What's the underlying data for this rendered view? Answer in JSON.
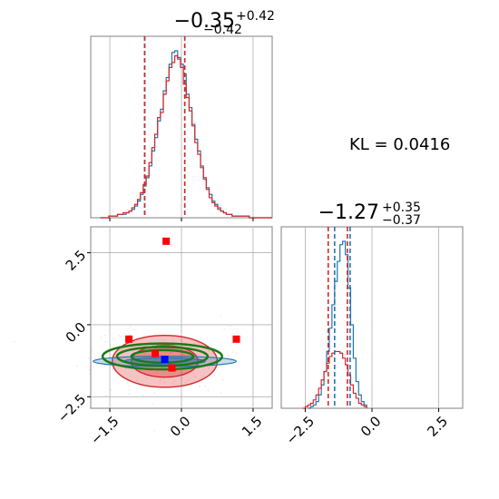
{
  "colors": {
    "blue": "#1f77b4",
    "red": "#d62728",
    "green": "#1a7a1a",
    "grid": "#b0b0b0",
    "frame": "#808080"
  },
  "chart_data": [
    {
      "type": "histogram",
      "panel": "top-left",
      "parameter_index": 0,
      "title_main": "−0.35",
      "title_plus": "+0.42",
      "title_minus": "−0.42",
      "xlim": [
        -1.9,
        1.9
      ],
      "x_ticks": [
        -1.5,
        0.0,
        1.5
      ],
      "y_ticks": [],
      "grid": true,
      "series": [
        {
          "color": "#1f77b4",
          "quantiles": [
            -0.77,
            0.07
          ],
          "bins": [
            -1.7,
            1.9
          ],
          "values": [
            0,
            0,
            0,
            1,
            1,
            1,
            2,
            2,
            2,
            3,
            4,
            5,
            7,
            10,
            14,
            19,
            24,
            31,
            40,
            48,
            58,
            65,
            76,
            84,
            92,
            99,
            100,
            96,
            92,
            86,
            74,
            66,
            56,
            47,
            40,
            31,
            23,
            18,
            14,
            10,
            8,
            6,
            4,
            3,
            2,
            2,
            1,
            1,
            1,
            1,
            1,
            1,
            0,
            0,
            0,
            0,
            0,
            0,
            0,
            0
          ]
        },
        {
          "color": "#d62728",
          "quantiles": [
            -0.77,
            0.07
          ],
          "bins": [
            -1.7,
            1.9
          ],
          "values": [
            0,
            0,
            0,
            1,
            1,
            1,
            2,
            2,
            3,
            3,
            4,
            6,
            8,
            11,
            15,
            20,
            25,
            33,
            42,
            50,
            60,
            63,
            74,
            82,
            90,
            93,
            97,
            95,
            90,
            80,
            72,
            64,
            55,
            45,
            38,
            30,
            24,
            17,
            12,
            9,
            7,
            5,
            4,
            3,
            2,
            2,
            1,
            1,
            1,
            1,
            1,
            1,
            0,
            0,
            0,
            0,
            0,
            0,
            0,
            0
          ]
        }
      ]
    },
    {
      "type": "contour",
      "panel": "bottom-left",
      "x_param": 0,
      "y_param": 1,
      "xlim": [
        -1.9,
        1.9
      ],
      "ylim": [
        -2.9,
        3.4
      ],
      "x_ticks": [
        -1.5,
        0.0,
        1.5
      ],
      "y_ticks": [
        -2.5,
        0.0,
        2.5
      ],
      "grid": true,
      "crosshair": {
        "x": 0.0,
        "y": 0.0
      },
      "red_contours": [
        {
          "cx": -0.35,
          "cy": -1.27,
          "rx": 1.1,
          "ry": 0.9
        },
        {
          "cx": -0.35,
          "cy": -1.27,
          "rx": 0.7,
          "ry": 0.55
        }
      ],
      "blue_contours": [
        {
          "cx": -0.35,
          "cy": -1.27,
          "rx": 1.5,
          "ry": 0.18
        },
        {
          "cx": -0.35,
          "cy": -1.27,
          "rx": 0.85,
          "ry": 0.12
        }
      ],
      "green_contours": [
        {
          "cx": -0.4,
          "cy": -1.1,
          "rx": 1.25,
          "ry": 0.45
        },
        {
          "cx": -0.4,
          "cy": -1.1,
          "rx": 0.95,
          "ry": 0.33
        },
        {
          "cx": -0.4,
          "cy": -1.1,
          "rx": 0.65,
          "ry": 0.22
        }
      ],
      "red_points": [
        {
          "x": -0.32,
          "y": 2.9
        },
        {
          "x": -1.1,
          "y": -0.5
        },
        {
          "x": 1.15,
          "y": -0.5
        },
        {
          "x": -0.55,
          "y": -1.0
        },
        {
          "x": -0.2,
          "y": -1.5
        }
      ],
      "blue_points": [
        {
          "x": -0.35,
          "y": -1.2
        }
      ]
    },
    {
      "type": "histogram",
      "panel": "bottom-right",
      "parameter_index": 1,
      "title_main": "−1.27",
      "title_plus": "+0.35",
      "title_minus": "−0.37",
      "xlim": [
        -3.4,
        3.4
      ],
      "x_ticks": [
        -2.5,
        0.0,
        2.5
      ],
      "y_ticks": [],
      "grid": true,
      "series": [
        {
          "color": "#1f77b4",
          "quantiles": [
            -1.4,
            -0.82
          ],
          "bins": [
            -2.4,
            -0.2
          ],
          "values": [
            0,
            1,
            2,
            4,
            8,
            14,
            22,
            34,
            48,
            62,
            76,
            88,
            98,
            100,
            92,
            72,
            50,
            30,
            16,
            8,
            4,
            2
          ]
        },
        {
          "color": "#d62728",
          "quantiles": [
            -1.64,
            -0.92
          ],
          "bins": [
            -2.6,
            -0.2
          ],
          "values": [
            0,
            1,
            2,
            3,
            5,
            8,
            12,
            17,
            22,
            27,
            31,
            33,
            34,
            34,
            33,
            30,
            26,
            20,
            14,
            9,
            6,
            3,
            2,
            1
          ]
        }
      ]
    }
  ],
  "annotation": {
    "text": "KL = 0.0416"
  }
}
